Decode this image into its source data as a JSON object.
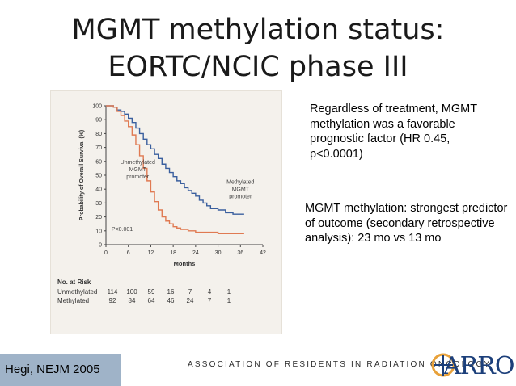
{
  "slide": {
    "title_line1": "MGMT methylation status:",
    "title_line2": "EORTC/NCIC phase III",
    "text1": "Regardless of treatment, MGMT methylation was a favorable prognostic factor (HR 0.45, p<0.0001)",
    "text2": "MGMT methylation: strongest predictor of outcome (secondary retrospective analysis): 23 mo vs 13 mo",
    "citation": "Hegi, NEJM 2005",
    "organization": "ASSOCIATION OF RESIDENTS IN RADIATION ONCOLOGY",
    "logo_text": "ARRO"
  },
  "colors": {
    "methylated": "#3a5f9e",
    "unmethylated": "#e07a52",
    "citation_bg": "#9fb3c8",
    "logo": "#1c3f7a"
  },
  "risk_table": {
    "header": "No. at Risk",
    "rows": [
      {
        "label": "Unmethylated",
        "values": [
          "114",
          "100",
          "59",
          "16",
          "7",
          "4",
          "1"
        ]
      },
      {
        "label": "Methylated",
        "values": [
          "92",
          "84",
          "64",
          "46",
          "24",
          "7",
          "1"
        ]
      }
    ]
  },
  "chart_data": {
    "type": "line",
    "title": "",
    "xlabel": "Months",
    "ylabel": "Probability of Overall Survival (%)",
    "xlim": [
      0,
      42
    ],
    "ylim": [
      0,
      100
    ],
    "x_ticks": [
      "0",
      "6",
      "12",
      "18",
      "24",
      "30",
      "36",
      "42"
    ],
    "y_ticks": [
      "0",
      "10",
      "20",
      "30",
      "40",
      "50",
      "60",
      "70",
      "80",
      "90",
      "100"
    ],
    "annotations": {
      "unmethylated": [
        "Unmethylated",
        "MGMT",
        "promoter"
      ],
      "methylated": [
        "Methylated",
        "MGMT",
        "promoter"
      ],
      "pvalue": "P<0.001"
    },
    "series": [
      {
        "name": "Methylated MGMT promoter",
        "x": [
          0,
          2,
          3,
          4,
          5,
          6,
          7,
          8,
          9,
          10,
          11,
          12,
          13,
          14,
          15,
          16,
          17,
          18,
          19,
          20,
          21,
          22,
          23,
          24,
          25,
          26,
          27,
          28,
          30,
          32,
          33,
          34,
          36,
          37
        ],
        "y": [
          100,
          99,
          97,
          96,
          94,
          91,
          88,
          84,
          80,
          76,
          72,
          69,
          65,
          62,
          58,
          55,
          52,
          49,
          46,
          44,
          41,
          39,
          37,
          35,
          32,
          30,
          28,
          26,
          25,
          23,
          23,
          22,
          22,
          22
        ]
      },
      {
        "name": "Unmethylated MGMT promoter",
        "x": [
          0,
          2,
          3,
          4,
          5,
          6,
          7,
          8,
          9,
          10,
          11,
          12,
          13,
          14,
          15,
          16,
          17,
          18,
          19,
          20,
          22,
          24,
          26,
          28,
          30,
          32,
          34,
          36,
          37
        ],
        "y": [
          100,
          99,
          96,
          93,
          89,
          85,
          79,
          72,
          64,
          55,
          46,
          38,
          31,
          25,
          20,
          17,
          15,
          13,
          12,
          11,
          10,
          9,
          9,
          9,
          8,
          8,
          8,
          8,
          8
        ]
      }
    ]
  }
}
